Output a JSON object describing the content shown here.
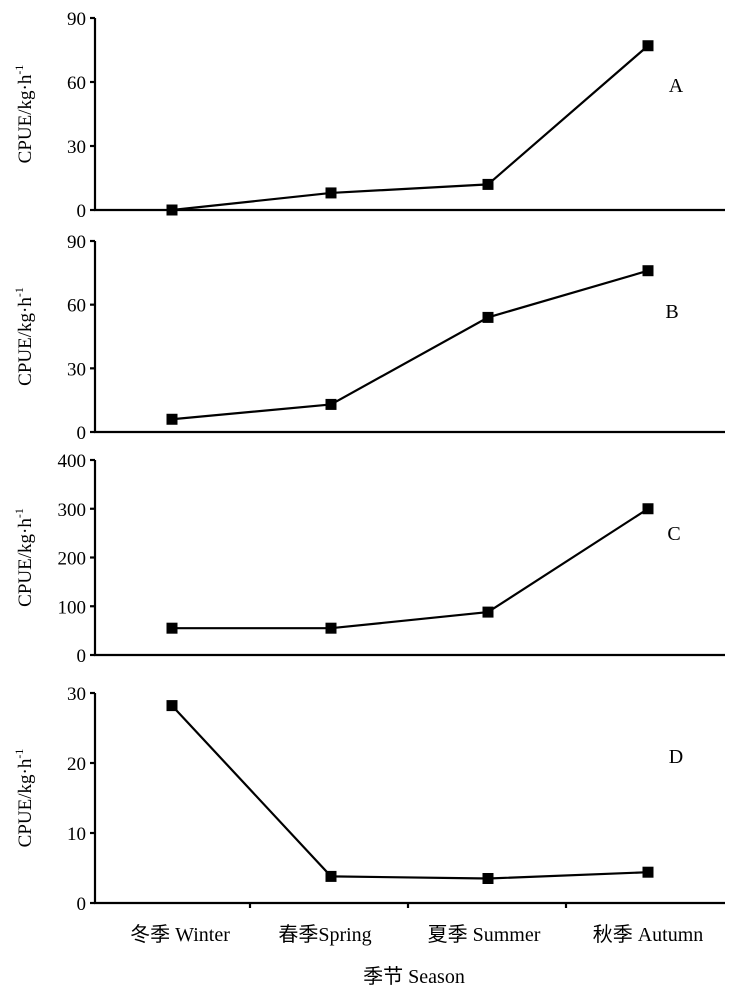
{
  "chart_data": {
    "type": "line",
    "categories": [
      "冬季 Winter",
      "春季Spring",
      "夏季 Summer",
      "秋季 Autumn"
    ],
    "xlabel": "季节 Season",
    "panels": [
      {
        "label": "A",
        "ylabel": "CPUE/kg·h",
        "ylabel_sup": "-1",
        "ylim": [
          0,
          90
        ],
        "yticks": [
          0,
          30,
          60,
          90
        ],
        "values": [
          0,
          8,
          12,
          77
        ]
      },
      {
        "label": "B",
        "ylabel": "CPUE/kg·h",
        "ylabel_sup": "-1",
        "ylim": [
          0,
          90
        ],
        "yticks": [
          0,
          30,
          60,
          90
        ],
        "values": [
          6,
          13,
          54,
          76
        ]
      },
      {
        "label": "C",
        "ylabel": "CPUE/kg·h",
        "ylabel_sup": "-1",
        "ylim": [
          0,
          400
        ],
        "yticks": [
          0,
          100,
          200,
          300,
          400
        ],
        "values": [
          55,
          55,
          88,
          300
        ]
      },
      {
        "label": "D",
        "ylabel": "CPUE/kg·h",
        "ylabel_sup": "-1",
        "ylim": [
          0,
          30
        ],
        "yticks": [
          0,
          10,
          20,
          30
        ],
        "values": [
          28.2,
          3.8,
          3.5,
          4.4
        ]
      }
    ]
  }
}
